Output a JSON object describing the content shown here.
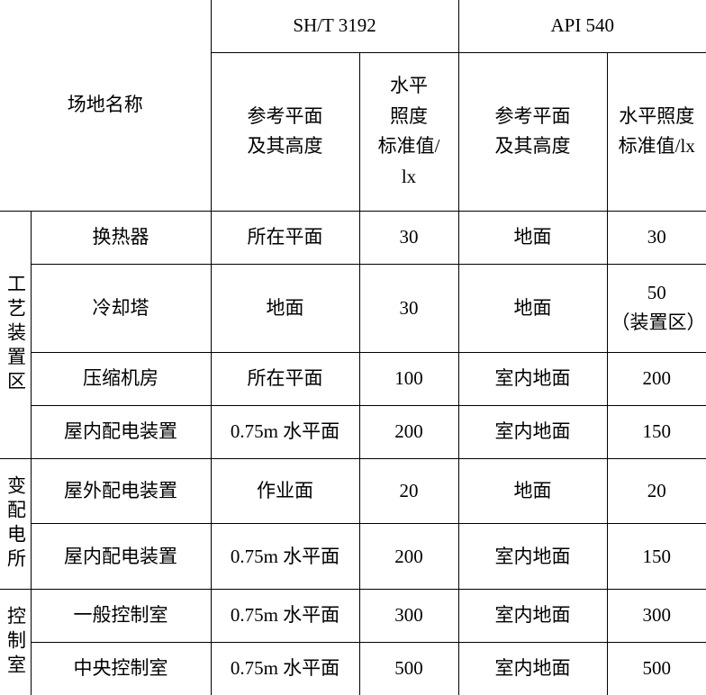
{
  "table": {
    "type": "table",
    "border_color": "#000000",
    "background_color": "#ffffff",
    "text_color": "#000000",
    "font_family": "SimSun",
    "font_size_pt": 16,
    "header": {
      "row_label": "场地名称",
      "standards": [
        {
          "title": "SH/T 3192",
          "ref_plane": "参考平面\n及其高度",
          "std_value": "水平\n照度\n标准值/\nlx"
        },
        {
          "title": "API 540",
          "ref_plane": "参考平面\n及其高度",
          "std_value": "水平照度\n标准值/lx"
        }
      ]
    },
    "groups": [
      {
        "name": "工艺装置区",
        "rows": [
          {
            "name": "换热器",
            "sht_ref": "所在平面",
            "sht_val": "30",
            "api_ref": "地面",
            "api_val": "30"
          },
          {
            "name": "冷却塔",
            "sht_ref": "地面",
            "sht_val": "30",
            "api_ref": "地面",
            "api_val": "50\n（装置区）"
          },
          {
            "name": "压缩机房",
            "sht_ref": "所在平面",
            "sht_val": "100",
            "api_ref": "室内地面",
            "api_val": "200"
          },
          {
            "name": "屋内配电装置",
            "sht_ref": "0.75m 水平面",
            "sht_val": "200",
            "api_ref": "室内地面",
            "api_val": "150"
          }
        ]
      },
      {
        "name": "变配电所",
        "rows": [
          {
            "name": "屋外配电装置",
            "sht_ref": "作业面",
            "sht_val": "20",
            "api_ref": "地面",
            "api_val": "20"
          },
          {
            "name": "屋内配电装置",
            "sht_ref": "0.75m 水平面",
            "sht_val": "200",
            "api_ref": "室内地面",
            "api_val": "150"
          }
        ]
      },
      {
        "name": "控制室",
        "rows": [
          {
            "name": "一般控制室",
            "sht_ref": "0.75m 水平面",
            "sht_val": "300",
            "api_ref": "室内地面",
            "api_val": "300"
          },
          {
            "name": "中央控制室",
            "sht_ref": "0.75m 水平面",
            "sht_val": "500",
            "api_ref": "室内地面",
            "api_val": "500"
          }
        ]
      }
    ]
  }
}
